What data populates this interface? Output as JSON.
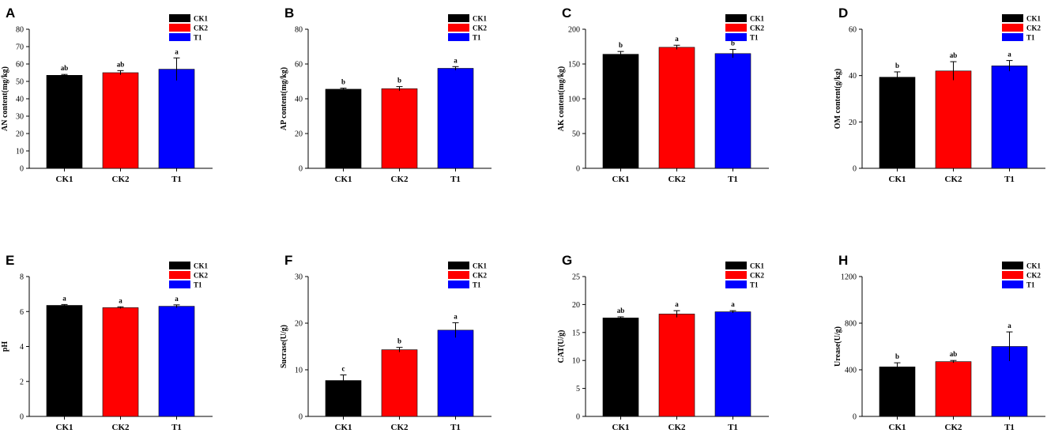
{
  "colors": {
    "CK1": "#000000",
    "CK2": "#ff0000",
    "T1": "#0000ff"
  },
  "legend": [
    "CK1",
    "CK2",
    "T1"
  ],
  "chart_data": [
    {
      "type": "bar",
      "panel": "A",
      "ylabel": "AN content(mg/kg)",
      "categories": [
        "CK1",
        "CK2",
        "T1"
      ],
      "values": [
        53.5,
        55,
        57
      ],
      "errors": [
        0.5,
        1.2,
        6.5
      ],
      "significance": [
        "ab",
        "ab",
        "a"
      ],
      "ylim": [
        0,
        80
      ],
      "yticks": [
        0,
        10,
        20,
        30,
        40,
        50,
        60,
        70,
        80
      ]
    },
    {
      "type": "bar",
      "panel": "B",
      "ylabel": "AP content(mg/kg)",
      "categories": [
        "CK1",
        "CK2",
        "T1"
      ],
      "values": [
        45.5,
        45.8,
        57.5
      ],
      "errors": [
        0.6,
        1.2,
        1.0
      ],
      "significance": [
        "b",
        "b",
        "a"
      ],
      "ylim": [
        0,
        80
      ],
      "yticks": [
        0,
        20,
        40,
        60,
        80
      ]
    },
    {
      "type": "bar",
      "panel": "C",
      "ylabel": "AK content(mg/kg)",
      "categories": [
        "CK1",
        "CK2",
        "T1"
      ],
      "values": [
        164,
        174,
        165
      ],
      "errors": [
        4,
        3,
        6
      ],
      "significance": [
        "b",
        "a",
        "b"
      ],
      "ylim": [
        0,
        200
      ],
      "yticks": [
        0,
        50,
        100,
        150,
        200
      ]
    },
    {
      "type": "bar",
      "panel": "D",
      "ylabel": "OM content(g/kg)",
      "categories": [
        "CK1",
        "CK2",
        "T1"
      ],
      "values": [
        39.3,
        42,
        44.2
      ],
      "errors": [
        2.3,
        4,
        2.3
      ],
      "significance": [
        "b",
        "ab",
        "a"
      ],
      "ylim": [
        0,
        60
      ],
      "yticks": [
        0,
        20,
        40,
        60
      ]
    },
    {
      "type": "bar",
      "panel": "E",
      "ylabel": "pH",
      "categories": [
        "CK1",
        "CK2",
        "T1"
      ],
      "values": [
        6.35,
        6.22,
        6.3
      ],
      "errors": [
        0.05,
        0.05,
        0.08
      ],
      "significance": [
        "a",
        "a",
        "a"
      ],
      "ylim": [
        0,
        8
      ],
      "yticks": [
        0,
        2,
        4,
        6,
        8
      ]
    },
    {
      "type": "bar",
      "panel": "F",
      "ylabel": "Sucrase(U/g)",
      "categories": [
        "CK1",
        "CK2",
        "T1"
      ],
      "values": [
        7.7,
        14.3,
        18.5
      ],
      "errors": [
        1.2,
        0.5,
        1.6
      ],
      "significance": [
        "c",
        "b",
        "a"
      ],
      "ylim": [
        0,
        30
      ],
      "yticks": [
        0,
        10,
        20,
        30
      ]
    },
    {
      "type": "bar",
      "panel": "G",
      "ylabel": "CAT(U/g)",
      "categories": [
        "CK1",
        "CK2",
        "T1"
      ],
      "values": [
        17.6,
        18.3,
        18.7
      ],
      "errors": [
        0.2,
        0.6,
        0.2
      ],
      "significance": [
        "ab",
        "a",
        "a"
      ],
      "ylim": [
        0,
        25
      ],
      "yticks": [
        0,
        5,
        10,
        15,
        20,
        25
      ]
    },
    {
      "type": "bar",
      "panel": "H",
      "ylabel": "Urease(U/g)",
      "categories": [
        "CK1",
        "CK2",
        "T1"
      ],
      "values": [
        425,
        470,
        600
      ],
      "errors": [
        35,
        10,
        125
      ],
      "significance": [
        "b",
        "ab",
        "a"
      ],
      "ylim": [
        0,
        1200
      ],
      "yticks": [
        0,
        400,
        800,
        1200
      ]
    }
  ]
}
